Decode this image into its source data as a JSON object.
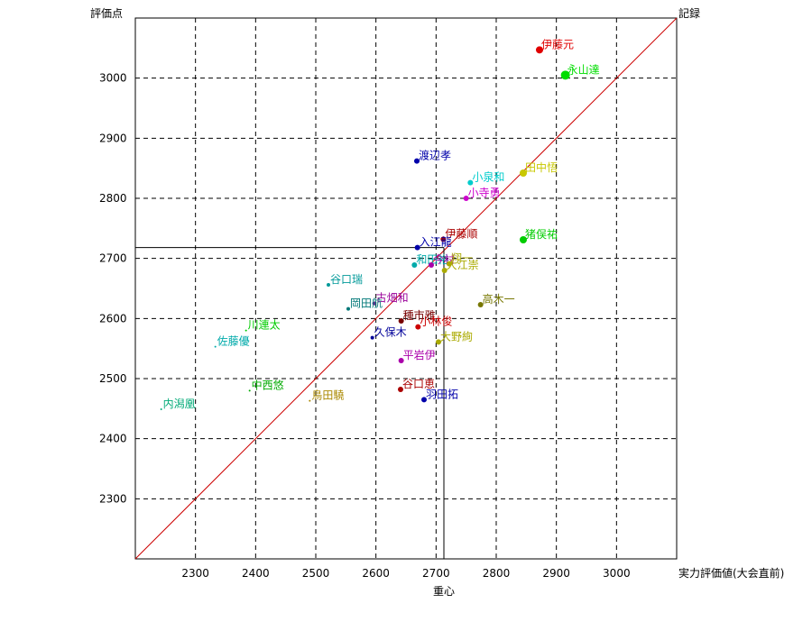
{
  "chart_data": {
    "type": "scatter",
    "ylabel": "評価点",
    "x_right_label": "実力評価値(大会直前)",
    "y_right_label": "記録",
    "xlabel": "重心",
    "xlim": [
      2200,
      3100
    ],
    "ylim": [
      2200,
      3100
    ],
    "x_ticks": [
      2300,
      2400,
      2500,
      2600,
      2700,
      2800,
      2900,
      3000
    ],
    "y_ticks": [
      2300,
      2400,
      2500,
      2600,
      2700,
      2800,
      2900,
      3000
    ],
    "grid": "dashed",
    "diagonal_color": "#cc0000",
    "center_point": {
      "x": 2713,
      "y": 2718
    },
    "points": [
      {
        "label": "伊藤元",
        "x": 2872,
        "y": 3047,
        "color": "#e00000",
        "size": 4
      },
      {
        "label": "永山達",
        "x": 2915,
        "y": 3005,
        "color": "#00dd00",
        "size": 5
      },
      {
        "label": "渡辺孝",
        "x": 2668,
        "y": 2862,
        "color": "#0000aa",
        "size": 3
      },
      {
        "label": "田中悟",
        "x": 2845,
        "y": 2842,
        "color": "#c8c800",
        "size": 4
      },
      {
        "label": "小泉和",
        "x": 2757,
        "y": 2826,
        "color": "#00cccc",
        "size": 3
      },
      {
        "label": "小寺勇",
        "x": 2750,
        "y": 2800,
        "color": "#cc00cc",
        "size": 3
      },
      {
        "label": "伊藤順",
        "x": 2712,
        "y": 2732,
        "color": "#aa0000",
        "size": 3
      },
      {
        "label": "猪俣祐",
        "x": 2845,
        "y": 2731,
        "color": "#00cc00",
        "size": 4
      },
      {
        "label": "入江龍",
        "x": 2669,
        "y": 2718,
        "color": "#0000aa",
        "size": 3
      },
      {
        "label": "和田裕",
        "x": 2664,
        "y": 2689,
        "color": "#00aaaa",
        "size": 3
      },
      {
        "label": "今村",
        "x": 2692,
        "y": 2689,
        "color": "#aa00aa",
        "size": 3
      },
      {
        "label": "翔一",
        "x": 2722,
        "y": 2691,
        "color": "#aaaa00",
        "size": 3
      },
      {
        "label": "大江崇",
        "x": 2714,
        "y": 2680,
        "color": "#aaaa00",
        "size": 3
      },
      {
        "label": "谷口瑞",
        "x": 2521,
        "y": 2656,
        "color": "#009999",
        "size": 2
      },
      {
        "label": "古畑和",
        "x": 2597,
        "y": 2625,
        "color": "#990099",
        "size": 2
      },
      {
        "label": "高木一",
        "x": 2774,
        "y": 2623,
        "color": "#777700",
        "size": 3
      },
      {
        "label": "岡田航",
        "x": 2554,
        "y": 2616,
        "color": "#007777",
        "size": 2
      },
      {
        "label": "種市雅",
        "x": 2642,
        "y": 2596,
        "color": "#770000",
        "size": 3
      },
      {
        "label": "小林俊",
        "x": 2670,
        "y": 2586,
        "color": "#cc0000",
        "size": 3
      },
      {
        "label": "川連太",
        "x": 2384,
        "y": 2580,
        "color": "#00cc00",
        "size": 1
      },
      {
        "label": "久保木",
        "x": 2594,
        "y": 2568,
        "color": "#000099",
        "size": 2
      },
      {
        "label": "大野絢",
        "x": 2704,
        "y": 2561,
        "color": "#aaaa00",
        "size": 3
      },
      {
        "label": "佐藤優",
        "x": 2333,
        "y": 2553,
        "color": "#00aaaa",
        "size": 1
      },
      {
        "label": "平岩伊",
        "x": 2642,
        "y": 2530,
        "color": "#aa00aa",
        "size": 3
      },
      {
        "label": "谷口恵",
        "x": 2641,
        "y": 2482,
        "color": "#aa0000",
        "size": 3
      },
      {
        "label": "中西悠",
        "x": 2390,
        "y": 2480,
        "color": "#00aa00",
        "size": 1
      },
      {
        "label": "羽田拓",
        "x": 2680,
        "y": 2465,
        "color": "#0000aa",
        "size": 3
      },
      {
        "label": "鳥田驍",
        "x": 2490,
        "y": 2463,
        "color": "#aa8800",
        "size": 1
      },
      {
        "label": "内潟凰",
        "x": 2243,
        "y": 2449,
        "color": "#00aa77",
        "size": 1
      }
    ]
  }
}
